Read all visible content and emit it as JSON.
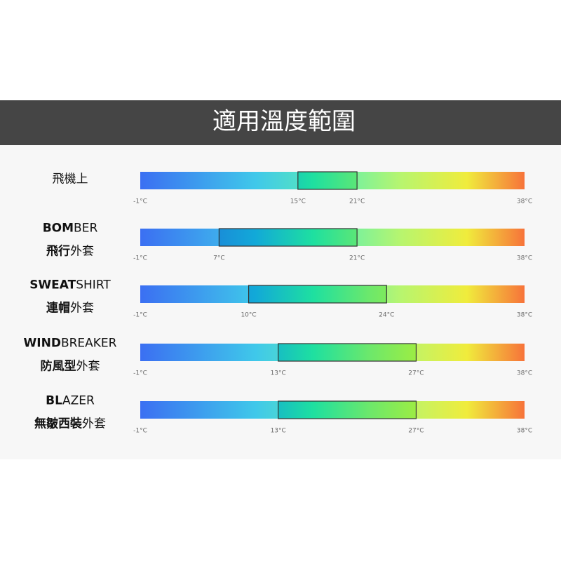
{
  "header": {
    "title": "適用溫度範圍"
  },
  "xlim": [
    -1,
    38
  ],
  "rows": [
    {
      "label": [
        {
          "light": "飛機上"
        }
      ],
      "range": [
        15,
        21
      ],
      "ticks": [
        {
          "value": -1,
          "label": "-1°C"
        },
        {
          "value": 15,
          "label": "15°C"
        },
        {
          "value": 21,
          "label": "21°C"
        },
        {
          "value": 38,
          "label": "38°C"
        }
      ]
    },
    {
      "label": [
        {
          "bold": "BOM",
          "light": "BER"
        },
        {
          "bold": "飛行",
          "light": "外套"
        }
      ],
      "range": [
        7,
        21
      ],
      "ticks": [
        {
          "value": -1,
          "label": "-1°C"
        },
        {
          "value": 7,
          "label": "7°C"
        },
        {
          "value": 21,
          "label": "21°C"
        },
        {
          "value": 38,
          "label": "38°C"
        }
      ]
    },
    {
      "label": [
        {
          "bold": "SWEAT",
          "light": "SHIRT"
        },
        {
          "bold": "連帽",
          "light": "外套"
        }
      ],
      "range": [
        10,
        24
      ],
      "ticks": [
        {
          "value": -1,
          "label": "-1°C"
        },
        {
          "value": 10,
          "label": "10°C"
        },
        {
          "value": 24,
          "label": "24°C"
        },
        {
          "value": 38,
          "label": "38°C"
        }
      ]
    },
    {
      "label": [
        {
          "bold": "WIND",
          "light": "BREAKER"
        },
        {
          "bold": "防風型",
          "light": "外套"
        }
      ],
      "range": [
        13,
        27
      ],
      "ticks": [
        {
          "value": -1,
          "label": "-1°C"
        },
        {
          "value": 13,
          "label": "13°C"
        },
        {
          "value": 27,
          "label": "27°C"
        },
        {
          "value": 38,
          "label": "38°C"
        }
      ]
    },
    {
      "label": [
        {
          "bold": "BL",
          "light": "AZER"
        },
        {
          "bold": "無皺西裝",
          "light": "外套"
        }
      ],
      "range": [
        13,
        27
      ],
      "ticks": [
        {
          "value": -1,
          "label": "-1°C"
        },
        {
          "value": 13,
          "label": "13°C"
        },
        {
          "value": 27,
          "label": "27°C"
        },
        {
          "value": 38,
          "label": "38°C"
        }
      ]
    }
  ]
}
